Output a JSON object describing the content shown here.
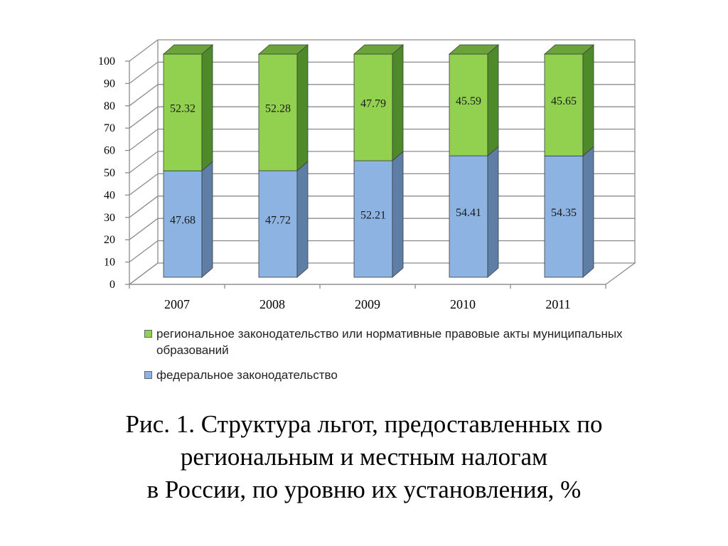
{
  "chart_data": {
    "type": "bar",
    "stacked": true,
    "three_d": true,
    "categories": [
      "2007",
      "2008",
      "2009",
      "2010",
      "2011"
    ],
    "series": [
      {
        "name": "федеральное законодательство",
        "values": [
          47.68,
          47.72,
          52.21,
          54.41,
          54.35
        ],
        "color": "#8db3e2",
        "side_color": "#5f7ea5",
        "top_color": "#7ba0cf"
      },
      {
        "name": "региональное законодательство или нормативные правовые акты муниципальных образований",
        "values": [
          52.32,
          52.28,
          47.79,
          45.59,
          45.65
        ],
        "color": "#92d050",
        "side_color": "#4f8a2a",
        "top_color": "#6aa33a"
      }
    ],
    "data_labels": [
      [
        "47.68",
        "47.72",
        "52.21",
        "54.41",
        "54.35"
      ],
      [
        "52.32",
        "52.28",
        "47.79",
        "45.59",
        "45.65"
      ]
    ],
    "ylim": [
      0,
      100
    ],
    "yticks": [
      "0",
      "10",
      "20",
      "30",
      "40",
      "50",
      "60",
      "70",
      "80",
      "90",
      "100"
    ],
    "grid": true,
    "legend_position": "bottom",
    "title": "",
    "xlabel": "",
    "ylabel": ""
  },
  "legend": {
    "items": [
      {
        "label": "региональное законодательство или нормативные правовые акты муниципальных образований",
        "color": "#92d050"
      },
      {
        "label": "федеральное законодательство",
        "color": "#8db3e2"
      }
    ]
  },
  "caption": {
    "line1": "Рис. 1. Структура льгот, предоставленных по",
    "line2": "региональным и местным налогам",
    "line3": "в России, по уровню их установления, %"
  }
}
